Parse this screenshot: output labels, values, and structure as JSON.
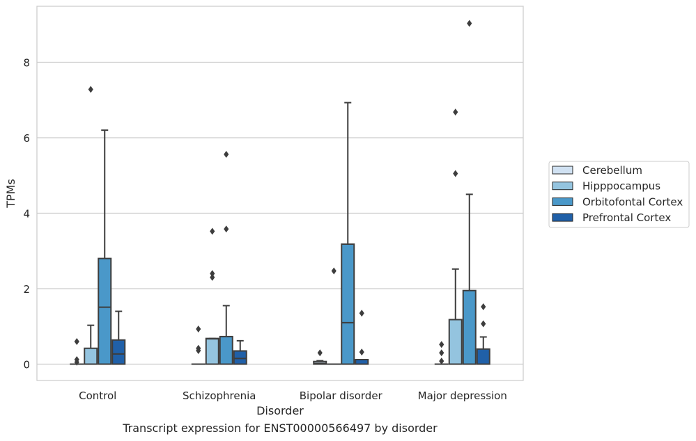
{
  "chart_data": {
    "type": "box",
    "title": "Transcript expression for ENST00000566497 by disorder",
    "xlabel": "Disorder",
    "ylabel": "TPMs",
    "ylim": [
      -0.45,
      9.6
    ],
    "y_ticks": [
      0,
      2,
      4,
      6,
      8
    ],
    "grid": "horizontal",
    "legend_position": "right",
    "categories": [
      "Control",
      "Schizophrenia",
      "Bipolar disorder",
      "Major depression"
    ],
    "series": [
      {
        "name": "Cerebellum",
        "color": "#d0e1f2",
        "boxes": [
          {
            "whisker_low": 0,
            "q1": 0,
            "median": 0,
            "q3": 0,
            "whisker_high": 0,
            "outliers": [
              0.6,
              0.12,
              0.05
            ]
          },
          {
            "whisker_low": 0,
            "q1": 0,
            "median": 0,
            "q3": 0,
            "whisker_high": 0,
            "outliers": [
              0.93,
              0.42,
              0.36
            ]
          },
          {
            "whisker_low": 0,
            "q1": 0,
            "median": 0.02,
            "q3": 0.07,
            "whisker_high": 0.09,
            "outliers": [
              0.3
            ]
          },
          {
            "whisker_low": 0,
            "q1": 0,
            "median": 0,
            "q3": 0,
            "whisker_high": 0,
            "outliers": [
              0.52,
              0.3,
              0.08
            ]
          }
        ]
      },
      {
        "name": "Hipppocampus",
        "color": "#94c4df",
        "boxes": [
          {
            "whisker_low": 0,
            "q1": 0,
            "median": 0,
            "q3": 0.42,
            "whisker_high": 1.03,
            "outliers": [
              7.28
            ]
          },
          {
            "whisker_low": 0,
            "q1": 0,
            "median": 0.67,
            "q3": 0.68,
            "whisker_high": 0.68,
            "outliers": [
              3.52,
              2.4,
              2.3
            ]
          },
          {
            "whisker_low": 0,
            "q1": 0,
            "median": 0,
            "q3": 0,
            "whisker_high": 0,
            "outliers": [
              2.47
            ]
          },
          {
            "whisker_low": 0,
            "q1": 0,
            "median": 0,
            "q3": 1.18,
            "whisker_high": 2.52,
            "outliers": [
              6.68,
              5.05
            ]
          }
        ]
      },
      {
        "name": "Orbitofontal Cortex",
        "color": "#4a98c9",
        "boxes": [
          {
            "whisker_low": 0,
            "q1": 0,
            "median": 1.51,
            "q3": 2.8,
            "whisker_high": 6.2,
            "outliers": []
          },
          {
            "whisker_low": 0,
            "q1": 0,
            "median": 0,
            "q3": 0.73,
            "whisker_high": 1.55,
            "outliers": [
              5.56,
              3.58
            ]
          },
          {
            "whisker_low": 0,
            "q1": 0,
            "median": 1.1,
            "q3": 3.18,
            "whisker_high": 6.93,
            "outliers": []
          },
          {
            "whisker_low": 0,
            "q1": 0,
            "median": 0,
            "q3": 1.95,
            "whisker_high": 4.5,
            "outliers": [
              9.03
            ]
          }
        ]
      },
      {
        "name": "Prefrontal Cortex",
        "color": "#2060a8",
        "boxes": [
          {
            "whisker_low": 0,
            "q1": 0,
            "median": 0.27,
            "q3": 0.64,
            "whisker_high": 1.4,
            "outliers": []
          },
          {
            "whisker_low": 0,
            "q1": 0,
            "median": 0.15,
            "q3": 0.35,
            "whisker_high": 0.62,
            "outliers": []
          },
          {
            "whisker_low": 0,
            "q1": 0,
            "median": 0,
            "q3": 0.12,
            "whisker_high": 0.12,
            "outliers": [
              1.35,
              0.32
            ]
          },
          {
            "whisker_low": 0,
            "q1": 0,
            "median": 0,
            "q3": 0.4,
            "whisker_high": 0.72,
            "outliers": [
              1.52,
              1.07
            ]
          }
        ]
      }
    ]
  }
}
